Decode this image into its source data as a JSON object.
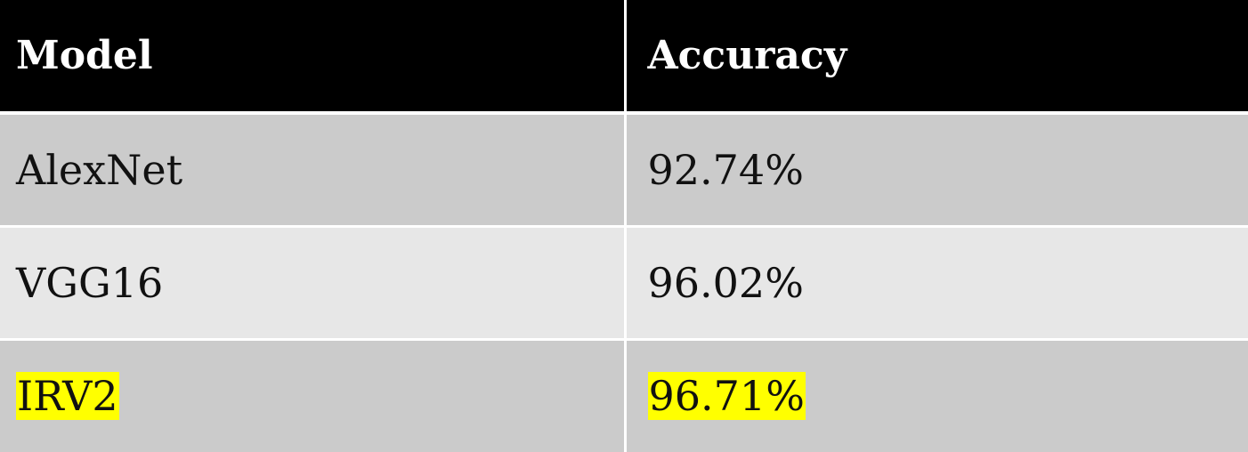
{
  "table": {
    "headers": [
      "Model",
      "Accuracy"
    ],
    "rows": [
      {
        "model": "AlexNet",
        "accuracy": "92.74%",
        "highlighted": false
      },
      {
        "model": "VGG16",
        "accuracy": "96.02%",
        "highlighted": false
      },
      {
        "model": "IRV2",
        "accuracy": "96.71%",
        "highlighted": true
      }
    ]
  },
  "colors": {
    "header_bg": "#000000",
    "header_text": "#ffffff",
    "row_odd_bg": "#cbcbcb",
    "row_even_bg": "#e7e7e7",
    "highlight": "#ffff00"
  }
}
